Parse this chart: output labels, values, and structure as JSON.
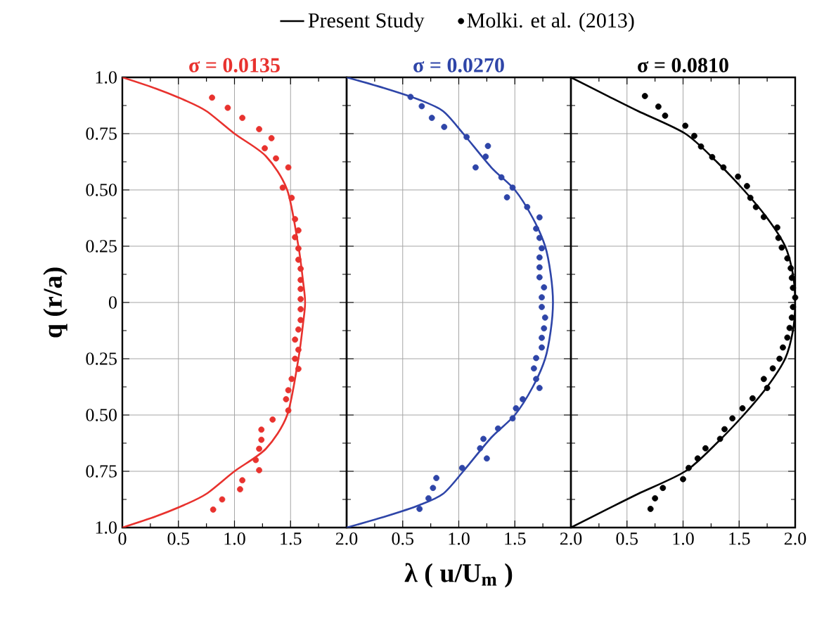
{
  "chart_data": [
    {
      "type": "line",
      "title": "σ = 0.0135",
      "ylabel": "q (r/a)",
      "xlim": [
        0,
        2
      ],
      "ylim": [
        -1,
        1
      ],
      "grid": true,
      "xticks": [
        {
          "value": 0,
          "label": "0"
        },
        {
          "value": 0.5,
          "label": "0.5"
        },
        {
          "value": 1,
          "label": "1.0"
        },
        {
          "value": 1.5,
          "label": "1.5"
        },
        {
          "value": 2,
          "label": "2.0"
        }
      ],
      "yticks": [
        {
          "value": -1,
          "label": "1.0"
        },
        {
          "value": -0.75,
          "label": "0.75"
        },
        {
          "value": -0.5,
          "label": "0.50"
        },
        {
          "value": -0.25,
          "label": "0.25"
        },
        {
          "value": 0,
          "label": "0"
        },
        {
          "value": 0.25,
          "label": "0.25"
        },
        {
          "value": 0.5,
          "label": "0.50"
        },
        {
          "value": 0.75,
          "label": "0.75"
        },
        {
          "value": 1,
          "label": "1.0"
        }
      ],
      "series": [
        {
          "type": "line",
          "color": "#e8322e",
          "line_style": "solid",
          "marker": "none",
          "x": [
            0,
            0.3,
            0.55,
            0.75,
            1.0,
            1.28,
            1.47,
            1.57,
            1.61,
            1.63,
            1.61,
            1.57,
            1.47,
            1.28,
            1.0,
            0.75,
            0.55,
            0.3,
            0
          ],
          "values": [
            1,
            0.95,
            0.9,
            0.85,
            0.75,
            0.65,
            0.5,
            0.25,
            0.1,
            0,
            -0.1,
            -0.25,
            -0.5,
            -0.65,
            -0.75,
            -0.85,
            -0.9,
            -0.95,
            -1
          ]
        },
        {
          "type": "scatter",
          "color": "#e8322e",
          "marker": "circle",
          "x": [
            0.8,
            0.94,
            1.07,
            1.22,
            1.33,
            1.27,
            1.37,
            1.48,
            1.43,
            1.51,
            1.54,
            1.57,
            1.54,
            1.57,
            1.57,
            1.59,
            1.59,
            1.59,
            1.59,
            1.59,
            1.59,
            1.57,
            1.54,
            1.57,
            1.54,
            1.57,
            1.51,
            1.48,
            1.46,
            1.48,
            1.34,
            1.24,
            1.24,
            1.22,
            1.19,
            1.22,
            1.07,
            1.05,
            0.89,
            0.81
          ],
          "values": [
            0.91,
            0.865,
            0.82,
            0.77,
            0.73,
            0.685,
            0.64,
            0.6,
            0.51,
            0.465,
            0.37,
            0.32,
            0.29,
            0.24,
            0.19,
            0.15,
            0.1,
            0.06,
            0.015,
            -0.03,
            -0.078,
            -0.12,
            -0.165,
            -0.21,
            -0.25,
            -0.295,
            -0.34,
            -0.39,
            -0.43,
            -0.48,
            -0.52,
            -0.565,
            -0.61,
            -0.65,
            -0.7,
            -0.745,
            -0.79,
            -0.83,
            -0.875,
            -0.92
          ]
        }
      ]
    },
    {
      "type": "line",
      "title": "σ = 0.0270",
      "xlabel": "λ ( u/U$_{m}$ )",
      "xlim": [
        0,
        2
      ],
      "ylim": [
        -1,
        1
      ],
      "grid": true,
      "tick_labels": "x",
      "xticks": [
        {
          "value": 0,
          "label": null
        },
        {
          "value": 0.5,
          "label": "0.5"
        },
        {
          "value": 1,
          "label": "1.0"
        },
        {
          "value": 1.5,
          "label": "1.5"
        },
        {
          "value": 2,
          "label": "2.0"
        }
      ],
      "yticks": [
        -1,
        -0.75,
        -0.5,
        -0.25,
        0,
        0.25,
        0.5,
        0.75,
        1
      ],
      "series": [
        {
          "type": "line",
          "color": "#2e45a8",
          "line_style": "solid",
          "marker": "none",
          "x": [
            0,
            0.35,
            0.65,
            0.86,
            1.04,
            1.29,
            1.5,
            1.66,
            1.77,
            1.82,
            1.84,
            1.82,
            1.77,
            1.66,
            1.5,
            1.29,
            1.04,
            0.86,
            0.65,
            0.35,
            0
          ],
          "values": [
            1,
            0.95,
            0.9,
            0.85,
            0.75,
            0.6,
            0.5,
            0.375,
            0.25,
            0.125,
            0,
            -0.125,
            -0.25,
            -0.375,
            -0.5,
            -0.6,
            -0.75,
            -0.85,
            -0.9,
            -0.95,
            -1
          ]
        },
        {
          "type": "scatter",
          "color": "#2e45a8",
          "marker": "circle",
          "x": [
            0.57,
            0.67,
            0.76,
            0.87,
            1.07,
            1.26,
            1.24,
            1.15,
            1.38,
            1.48,
            1.43,
            1.61,
            1.72,
            1.69,
            1.72,
            1.74,
            1.72,
            1.72,
            1.72,
            1.76,
            1.74,
            1.74,
            1.77,
            1.76,
            1.74,
            1.74,
            1.69,
            1.67,
            1.69,
            1.72,
            1.57,
            1.51,
            1.48,
            1.35,
            1.22,
            1.19,
            1.25,
            1.03,
            0.8,
            0.77,
            0.73,
            0.65
          ],
          "values": [
            0.913,
            0.872,
            0.82,
            0.78,
            0.735,
            0.695,
            0.648,
            0.6,
            0.556,
            0.51,
            0.467,
            0.424,
            0.378,
            0.328,
            0.287,
            0.241,
            0.2,
            0.156,
            0.112,
            0.067,
            0.023,
            -0.02,
            -0.067,
            -0.115,
            -0.157,
            -0.2,
            -0.247,
            -0.293,
            -0.34,
            -0.38,
            -0.43,
            -0.47,
            -0.515,
            -0.56,
            -0.606,
            -0.648,
            -0.693,
            -0.735,
            -0.78,
            -0.824,
            -0.87,
            -0.917
          ]
        }
      ]
    },
    {
      "type": "line",
      "title": "σ = 0.0810",
      "xlim": [
        0,
        2
      ],
      "ylim": [
        -1,
        1
      ],
      "grid": true,
      "tick_labels": "x",
      "legend": "top",
      "xticks": [
        {
          "value": 0,
          "label": null
        },
        {
          "value": 0.5,
          "label": "0.5"
        },
        {
          "value": 1,
          "label": "1.0"
        },
        {
          "value": 1.5,
          "label": "1.5"
        },
        {
          "value": 2,
          "label": "2.0"
        }
      ],
      "yticks": [
        -1,
        -0.75,
        -0.5,
        -0.25,
        0,
        0.25,
        0.5,
        0.75,
        1
      ],
      "series": [
        {
          "type": "line",
          "name": "Present Study",
          "color": "#000000",
          "line_style": "solid",
          "marker": "none",
          "x": [
            0,
            0.33,
            0.6,
            1.02,
            1.3,
            1.54,
            1.75,
            1.91,
            1.98,
            2.0,
            1.98,
            1.91,
            1.75,
            1.54,
            1.3,
            1.02,
            0.6,
            0.33,
            0
          ],
          "values": [
            1,
            0.917,
            0.85,
            0.75,
            0.625,
            0.5,
            0.375,
            0.25,
            0.125,
            0,
            -0.125,
            -0.25,
            -0.375,
            -0.5,
            -0.625,
            -0.75,
            -0.85,
            -0.917,
            -1
          ]
        },
        {
          "type": "scatter",
          "name": "Molki. et al. (2013)",
          "color": "#000000",
          "marker": "circle",
          "x": [
            0.66,
            0.78,
            0.84,
            1.02,
            1.1,
            1.16,
            1.26,
            1.36,
            1.49,
            1.57,
            1.6,
            1.65,
            1.72,
            1.84,
            1.85,
            1.88,
            1.93,
            1.96,
            1.97,
            1.98,
            2.0,
            1.98,
            1.97,
            1.95,
            1.93,
            1.89,
            1.86,
            1.8,
            1.72,
            1.75,
            1.62,
            1.53,
            1.44,
            1.37,
            1.33,
            1.2,
            1.13,
            1.05,
            1.0,
            0.82,
            0.75,
            0.71
          ],
          "values": [
            0.917,
            0.87,
            0.83,
            0.785,
            0.74,
            0.693,
            0.646,
            0.6,
            0.559,
            0.517,
            0.465,
            0.424,
            0.38,
            0.333,
            0.287,
            0.244,
            0.196,
            0.152,
            0.109,
            0.065,
            0.022,
            -0.02,
            -0.067,
            -0.113,
            -0.156,
            -0.2,
            -0.25,
            -0.293,
            -0.34,
            -0.38,
            -0.426,
            -0.47,
            -0.515,
            -0.563,
            -0.606,
            -0.648,
            -0.693,
            -0.735,
            -0.785,
            -0.824,
            -0.87,
            -0.917
          ]
        }
      ]
    }
  ]
}
